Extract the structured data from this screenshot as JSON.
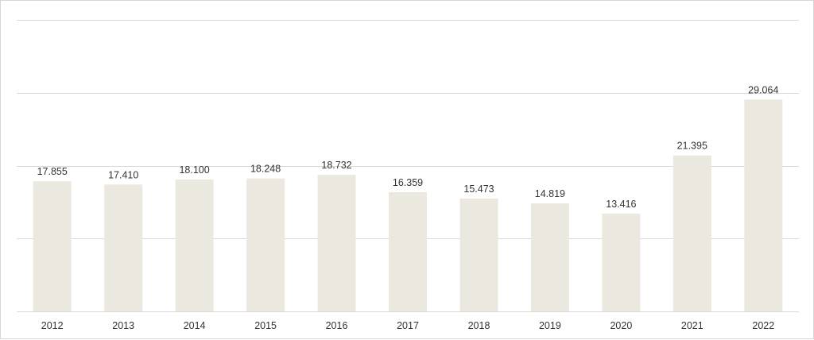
{
  "chart_data": {
    "type": "bar",
    "categories": [
      "2012",
      "2013",
      "2014",
      "2015",
      "2016",
      "2017",
      "2018",
      "2019",
      "2020",
      "2021",
      "2022"
    ],
    "values": [
      17855,
      17410,
      18100,
      18248,
      18732,
      16359,
      15473,
      14819,
      13416,
      21395,
      29064
    ],
    "data_labels": [
      "17.855",
      "17.410",
      "18.100",
      "18.248",
      "18.732",
      "16.359",
      "15.473",
      "14.819",
      "13.416",
      "21.395",
      "29.064"
    ],
    "title": "",
    "xlabel": "",
    "ylabel": "",
    "ylim": [
      0,
      40000
    ],
    "y_gridlines": [
      10000,
      20000,
      30000,
      40000
    ],
    "grid": true,
    "bar_color": "#ebe8e0",
    "legend": "none"
  }
}
